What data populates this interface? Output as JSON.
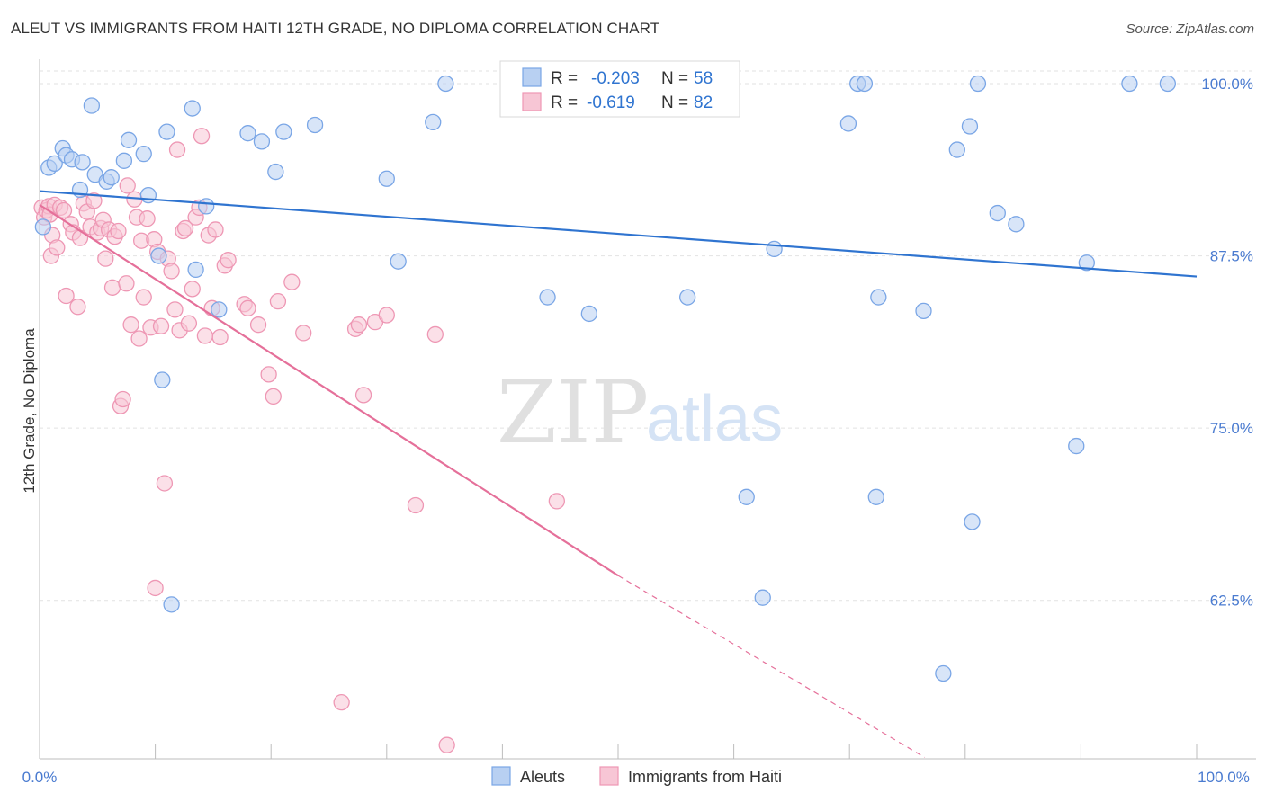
{
  "title": "ALEUT VS IMMIGRANTS FROM HAITI 12TH GRADE, NO DIPLOMA CORRELATION CHART",
  "source": "Source: ZipAtlas.com",
  "watermark": {
    "zip": "ZIP",
    "atlas": "atlas"
  },
  "legend": {
    "rows": [
      {
        "r_label": "R =",
        "r_value": "-0.203",
        "n_label": "N =",
        "n_value": "58"
      },
      {
        "r_label": "R =",
        "r_value": "-0.619",
        "n_label": "N =",
        "n_value": "82"
      }
    ]
  },
  "bottom_legend": [
    "Aleuts",
    "Immigrants from Haiti"
  ],
  "colors": {
    "blue_fill": "#b8d0f2",
    "blue_stroke": "#7aa6e6",
    "blue_line": "#2f74d0",
    "pink_fill": "#f7c6d5",
    "pink_stroke": "#ee97b4",
    "pink_line": "#e5709a",
    "grid": "#e2e2e2",
    "tick_text": "#4a7bd0"
  },
  "chart_data": {
    "type": "scatter",
    "title": "ALEUT VS IMMIGRANTS FROM HAITI 12TH GRADE, NO DIPLOMA CORRELATION CHART",
    "xlabel": "",
    "ylabel": "12th Grade, No Diploma",
    "xlim": [
      0,
      100
    ],
    "ylim": [
      51,
      101.5
    ],
    "x_tick_labels": [
      "0.0%",
      "100.0%"
    ],
    "y_ticks": [
      62.5,
      75.0,
      87.5,
      100.0
    ],
    "y_tick_labels": [
      "62.5%",
      "75.0%",
      "87.5%",
      "100.0%"
    ],
    "grid": true,
    "legend_placement": "top-center",
    "series": [
      {
        "name": "Aleuts",
        "r": -0.203,
        "n": 58,
        "trend": {
          "x": [
            0,
            100
          ],
          "y": [
            92.2,
            86.0
          ]
        },
        "points": [
          [
            0.3,
            89.6
          ],
          [
            0.8,
            93.9
          ],
          [
            1.3,
            94.2
          ],
          [
            2.0,
            95.3
          ],
          [
            2.3,
            94.8
          ],
          [
            2.8,
            94.5
          ],
          [
            3.5,
            92.3
          ],
          [
            3.7,
            94.3
          ],
          [
            4.5,
            98.4
          ],
          [
            4.8,
            93.4
          ],
          [
            5.8,
            92.9
          ],
          [
            6.2,
            93.2
          ],
          [
            7.3,
            94.4
          ],
          [
            7.7,
            95.9
          ],
          [
            9.0,
            94.9
          ],
          [
            9.4,
            91.9
          ],
          [
            10.3,
            87.5
          ],
          [
            11.0,
            96.5
          ],
          [
            11.4,
            62.2
          ],
          [
            10.6,
            78.5
          ],
          [
            13.2,
            98.2
          ],
          [
            13.5,
            86.5
          ],
          [
            14.4,
            91.1
          ],
          [
            15.5,
            83.6
          ],
          [
            18.0,
            96.4
          ],
          [
            19.2,
            95.8
          ],
          [
            20.4,
            93.6
          ],
          [
            21.1,
            96.5
          ],
          [
            23.8,
            97.0
          ],
          [
            30.0,
            93.1
          ],
          [
            31.0,
            87.1
          ],
          [
            34.0,
            97.2
          ],
          [
            35.1,
            100.0
          ],
          [
            43.9,
            84.5
          ],
          [
            47.3,
            100.0
          ],
          [
            47.5,
            83.3
          ],
          [
            51.3,
            100.0
          ],
          [
            56.0,
            84.5
          ],
          [
            61.1,
            70.0
          ],
          [
            62.5,
            62.7
          ],
          [
            63.5,
            88.0
          ],
          [
            69.9,
            97.1
          ],
          [
            70.7,
            100.0
          ],
          [
            71.3,
            100.0
          ],
          [
            72.3,
            70.0
          ],
          [
            72.5,
            84.5
          ],
          [
            76.4,
            83.5
          ],
          [
            78.1,
            57.2
          ],
          [
            79.3,
            95.2
          ],
          [
            80.4,
            96.9
          ],
          [
            80.6,
            68.2
          ],
          [
            81.1,
            100.0
          ],
          [
            82.8,
            90.6
          ],
          [
            84.4,
            89.8
          ],
          [
            89.6,
            73.7
          ],
          [
            90.5,
            87.0
          ],
          [
            94.2,
            100.0
          ],
          [
            97.5,
            100.0
          ]
        ]
      },
      {
        "name": "Immigrants from Haiti",
        "r": -0.619,
        "n": 82,
        "trend": {
          "x": [
            0,
            50
          ],
          "y": [
            91.2,
            64.3
          ]
        },
        "trend_dashed": {
          "x": [
            50,
            76.5
          ],
          "y": [
            64.3,
            51.1
          ]
        },
        "points": [
          [
            0.2,
            91.0
          ],
          [
            0.4,
            90.3
          ],
          [
            0.6,
            90.8
          ],
          [
            0.8,
            91.1
          ],
          [
            0.9,
            90.5
          ],
          [
            1.0,
            87.5
          ],
          [
            1.1,
            89.0
          ],
          [
            1.3,
            91.2
          ],
          [
            1.5,
            88.1
          ],
          [
            1.8,
            91.0
          ],
          [
            2.1,
            90.8
          ],
          [
            2.3,
            84.6
          ],
          [
            2.7,
            89.8
          ],
          [
            2.9,
            89.2
          ],
          [
            3.3,
            83.8
          ],
          [
            3.5,
            88.8
          ],
          [
            3.8,
            91.3
          ],
          [
            4.1,
            90.7
          ],
          [
            4.4,
            89.6
          ],
          [
            4.7,
            91.5
          ],
          [
            5.0,
            89.2
          ],
          [
            5.3,
            89.5
          ],
          [
            5.5,
            90.1
          ],
          [
            5.7,
            87.3
          ],
          [
            6.0,
            89.4
          ],
          [
            6.3,
            85.2
          ],
          [
            6.5,
            88.9
          ],
          [
            6.8,
            89.3
          ],
          [
            7.0,
            76.6
          ],
          [
            7.2,
            77.1
          ],
          [
            7.5,
            85.5
          ],
          [
            7.6,
            92.6
          ],
          [
            7.9,
            82.5
          ],
          [
            8.2,
            91.6
          ],
          [
            8.4,
            90.3
          ],
          [
            8.6,
            81.5
          ],
          [
            8.8,
            88.6
          ],
          [
            9.0,
            84.5
          ],
          [
            9.3,
            90.2
          ],
          [
            9.6,
            82.3
          ],
          [
            9.9,
            88.7
          ],
          [
            10.2,
            87.8
          ],
          [
            10.5,
            82.4
          ],
          [
            10.8,
            71.0
          ],
          [
            11.1,
            87.3
          ],
          [
            11.4,
            86.4
          ],
          [
            11.7,
            83.6
          ],
          [
            11.9,
            95.2
          ],
          [
            12.1,
            82.1
          ],
          [
            12.4,
            89.3
          ],
          [
            12.6,
            89.5
          ],
          [
            12.9,
            82.6
          ],
          [
            13.2,
            85.1
          ],
          [
            13.5,
            90.3
          ],
          [
            13.8,
            91.0
          ],
          [
            14.0,
            96.2
          ],
          [
            14.3,
            81.7
          ],
          [
            14.6,
            89.0
          ],
          [
            14.9,
            83.7
          ],
          [
            15.2,
            89.4
          ],
          [
            15.6,
            81.6
          ],
          [
            16.0,
            86.8
          ],
          [
            16.3,
            87.2
          ],
          [
            17.7,
            84.0
          ],
          [
            18.0,
            83.7
          ],
          [
            18.9,
            82.5
          ],
          [
            19.8,
            78.9
          ],
          [
            20.2,
            77.3
          ],
          [
            20.6,
            84.2
          ],
          [
            21.8,
            85.6
          ],
          [
            22.8,
            81.9
          ],
          [
            26.1,
            55.1
          ],
          [
            27.3,
            82.2
          ],
          [
            27.6,
            82.5
          ],
          [
            28.0,
            77.4
          ],
          [
            29.0,
            82.7
          ],
          [
            10.0,
            63.4
          ],
          [
            30.0,
            83.2
          ],
          [
            32.5,
            69.4
          ],
          [
            35.2,
            52.0
          ],
          [
            44.7,
            69.7
          ],
          [
            34.2,
            81.8
          ]
        ]
      }
    ]
  }
}
